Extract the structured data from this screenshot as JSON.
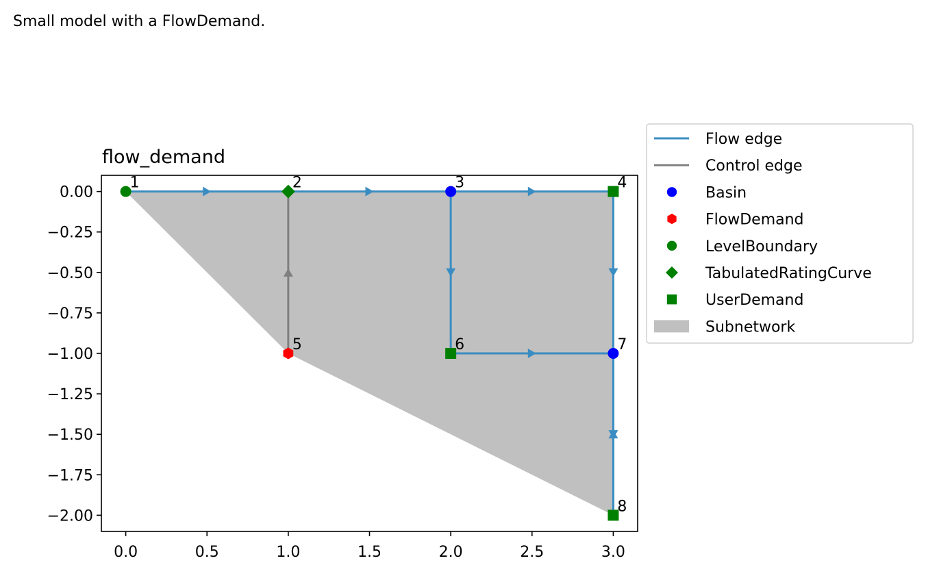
{
  "figure": {
    "suptitle": "Small model with a FlowDemand."
  },
  "chart_data": {
    "type": "scatter",
    "title": "flow_demand",
    "xlabel": "",
    "ylabel": "",
    "xlim": [
      -0.15,
      3.15
    ],
    "ylim": [
      -2.1,
      0.1
    ],
    "x_ticks": [
      0.0,
      0.5,
      1.0,
      1.5,
      2.0,
      2.5,
      3.0
    ],
    "x_tick_labels": [
      "0.0",
      "0.5",
      "1.0",
      "1.5",
      "2.0",
      "2.5",
      "3.0"
    ],
    "y_ticks": [
      0.0,
      -0.25,
      -0.5,
      -0.75,
      -1.0,
      -1.25,
      -1.5,
      -1.75,
      -2.0
    ],
    "y_tick_labels": [
      "0.00",
      "−0.25",
      "−0.50",
      "−0.75",
      "−1.00",
      "−1.25",
      "−1.50",
      "−1.75",
      "−2.00"
    ],
    "grid": false,
    "legend_position": "outside-right",
    "nodes": [
      {
        "id": "1",
        "x": 0,
        "y": 0,
        "type": "LevelBoundary"
      },
      {
        "id": "2",
        "x": 1,
        "y": 0,
        "type": "TabulatedRatingCurve"
      },
      {
        "id": "3",
        "x": 2,
        "y": 0,
        "type": "Basin"
      },
      {
        "id": "4",
        "x": 3,
        "y": 0,
        "type": "UserDemand"
      },
      {
        "id": "5",
        "x": 1,
        "y": -1,
        "type": "FlowDemand"
      },
      {
        "id": "6",
        "x": 2,
        "y": -1,
        "type": "UserDemand"
      },
      {
        "id": "7",
        "x": 3,
        "y": -1,
        "type": "Basin"
      },
      {
        "id": "8",
        "x": 3,
        "y": -2,
        "type": "UserDemand"
      }
    ],
    "edges": [
      {
        "from": "1",
        "to": "2",
        "kind": "flow"
      },
      {
        "from": "2",
        "to": "3",
        "kind": "flow"
      },
      {
        "from": "3",
        "to": "4",
        "kind": "flow"
      },
      {
        "from": "3",
        "to": "6",
        "kind": "flow"
      },
      {
        "from": "4",
        "to": "7",
        "kind": "flow"
      },
      {
        "from": "6",
        "to": "7",
        "kind": "flow"
      },
      {
        "from": "7",
        "to": "8",
        "kind": "flow"
      },
      {
        "from": "8",
        "to": "7",
        "kind": "flow"
      },
      {
        "from": "5",
        "to": "2",
        "kind": "control"
      }
    ],
    "subnetwork_polygon": [
      [
        0,
        0
      ],
      [
        3,
        0
      ],
      [
        3,
        -2
      ],
      [
        1,
        -1
      ]
    ],
    "styles": {
      "Basin": {
        "marker": "circle",
        "color": "#0000ff"
      },
      "FlowDemand": {
        "marker": "hexagon",
        "color": "#ff0000"
      },
      "LevelBoundary": {
        "marker": "circle",
        "color": "#008000"
      },
      "TabulatedRatingCurve": {
        "marker": "diamond",
        "color": "#008000"
      },
      "UserDemand": {
        "marker": "square",
        "color": "#008000"
      },
      "flow_edge_color": "#3a8dc2",
      "control_edge_color": "#808080",
      "subnetwork_color": "#c0c0c0"
    },
    "legend": [
      {
        "label": "Flow edge",
        "kind": "line",
        "color": "#3a8dc2"
      },
      {
        "label": "Control edge",
        "kind": "line",
        "color": "#808080"
      },
      {
        "label": "Basin",
        "kind": "marker",
        "marker": "circle",
        "color": "#0000ff"
      },
      {
        "label": "FlowDemand",
        "kind": "marker",
        "marker": "hexagon",
        "color": "#ff0000"
      },
      {
        "label": "LevelBoundary",
        "kind": "marker",
        "marker": "circle",
        "color": "#008000"
      },
      {
        "label": "TabulatedRatingCurve",
        "kind": "marker",
        "marker": "diamond",
        "color": "#008000"
      },
      {
        "label": "UserDemand",
        "kind": "marker",
        "marker": "square",
        "color": "#008000"
      },
      {
        "label": "Subnetwork",
        "kind": "patch",
        "color": "#c0c0c0"
      }
    ]
  }
}
